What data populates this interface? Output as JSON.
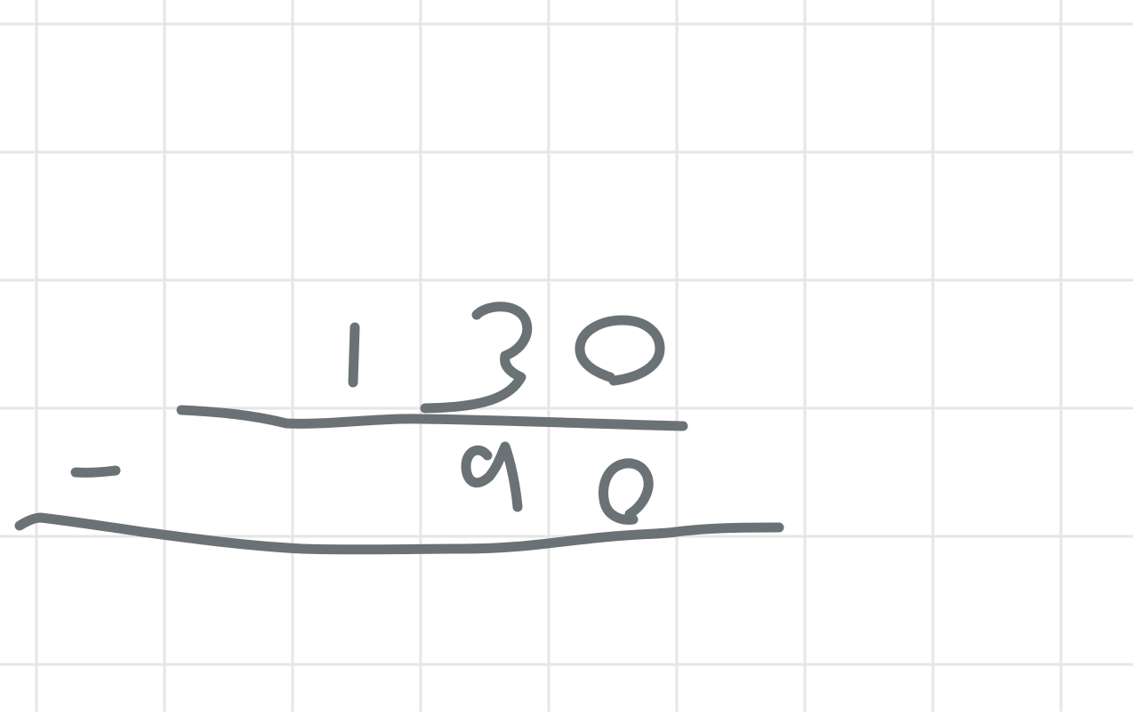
{
  "canvas": {
    "background_color": "#ffffff",
    "grid_color": "#e6e6e6",
    "ink_color": "#6b7275"
  },
  "problem": {
    "operation": "subtraction",
    "operator": "-",
    "minuend": "130",
    "subtrahend": "90",
    "minuend_digits": [
      "1",
      "3",
      "0"
    ],
    "subtrahend_digits": [
      "9",
      "0"
    ]
  }
}
